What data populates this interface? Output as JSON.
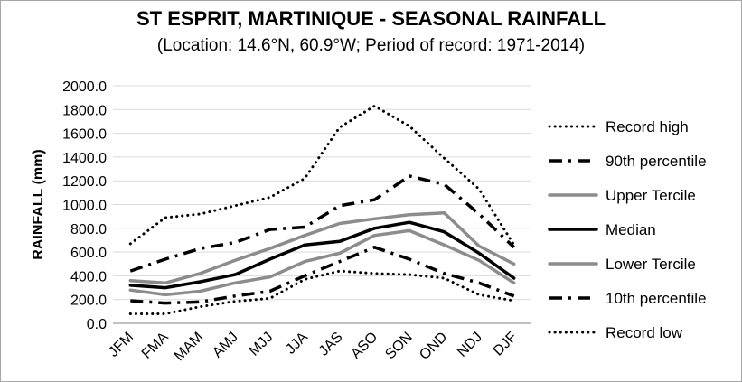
{
  "title": "ST ESPRIT, MARTINIQUE - SEASONAL RAINFALL",
  "subtitle": "(Location: 14.6°N, 60.9°W; Period of record: 1971-2014)",
  "chart_data": {
    "type": "line",
    "title": "ST ESPRIT, MARTINIQUE - SEASONAL RAINFALL",
    "subtitle": "(Location: 14.6°N, 60.9°W; Period of record: 1971-2014)",
    "xlabel": "",
    "ylabel": "RAINFALL (mm)",
    "ylim": [
      0,
      2000
    ],
    "yticks": [
      "0.0",
      "200.0",
      "400.0",
      "600.0",
      "800.0",
      "1000.0",
      "1200.0",
      "1400.0",
      "1600.0",
      "1800.0",
      "2000.0"
    ],
    "grid": "horizontal",
    "legend": "right",
    "categories": [
      "JFM",
      "FMA",
      "MAM",
      "AMJ",
      "MJJ",
      "JJA",
      "JAS",
      "ASO",
      "SON",
      "OND",
      "NDJ",
      "DJF"
    ],
    "series": [
      {
        "name": "Record high",
        "style": "dotted",
        "color": "#000000",
        "values": [
          670,
          890,
          920,
          990,
          1060,
          1220,
          1650,
          1830,
          1660,
          1390,
          1130,
          660
        ]
      },
      {
        "name": "90th percentile",
        "style": "dashdot",
        "color": "#000000",
        "values": [
          440,
          540,
          630,
          680,
          790,
          810,
          990,
          1040,
          1240,
          1170,
          920,
          640
        ]
      },
      {
        "name": "Upper Tercile",
        "style": "solid",
        "color": "#8c8c8c",
        "values": [
          360,
          340,
          420,
          530,
          630,
          740,
          840,
          880,
          915,
          930,
          650,
          500
        ]
      },
      {
        "name": "Median",
        "style": "solid",
        "color": "#000000",
        "values": [
          320,
          300,
          350,
          410,
          540,
          660,
          690,
          800,
          850,
          770,
          590,
          380
        ]
      },
      {
        "name": "Lower Tercile",
        "style": "solid",
        "color": "#8c8c8c",
        "values": [
          280,
          240,
          270,
          340,
          390,
          520,
          590,
          740,
          780,
          660,
          530,
          340
        ]
      },
      {
        "name": "10th percentile",
        "style": "dashdot",
        "color": "#000000",
        "values": [
          190,
          170,
          180,
          230,
          270,
          400,
          520,
          640,
          540,
          420,
          340,
          230
        ]
      },
      {
        "name": "Record low",
        "style": "dotted",
        "color": "#000000",
        "values": [
          80,
          80,
          140,
          185,
          210,
          370,
          440,
          420,
          410,
          380,
          240,
          190
        ]
      }
    ]
  }
}
